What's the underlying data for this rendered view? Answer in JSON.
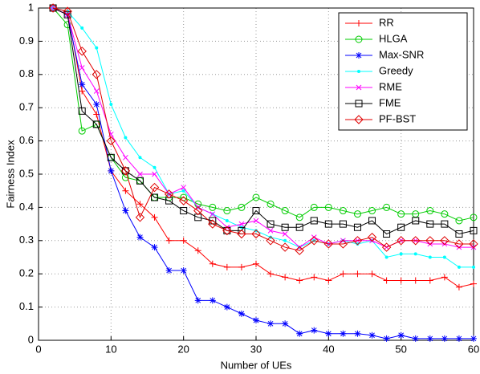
{
  "chart_data": {
    "type": "line",
    "xlabel": "Number of UEs",
    "ylabel": "Fairness Index",
    "x": [
      2,
      4,
      6,
      8,
      10,
      12,
      14,
      16,
      18,
      20,
      22,
      24,
      26,
      28,
      30,
      32,
      34,
      36,
      38,
      40,
      42,
      44,
      46,
      48,
      50,
      52,
      54,
      56,
      58,
      60
    ],
    "xlim": [
      0,
      60
    ],
    "xticks": [
      0,
      10,
      20,
      30,
      40,
      50,
      60
    ],
    "ylim": [
      0,
      1
    ],
    "yticks": [
      0,
      0.1,
      0.2,
      0.3,
      0.4,
      0.5,
      0.6,
      0.7,
      0.8,
      0.9,
      1
    ],
    "grid": true,
    "legend": "top-right",
    "series": [
      {
        "name": "RR",
        "color": "#ff0000",
        "marker": "+",
        "values": [
          1,
          0.99,
          0.75,
          0.68,
          0.51,
          0.45,
          0.41,
          0.37,
          0.3,
          0.3,
          0.27,
          0.23,
          0.22,
          0.22,
          0.23,
          0.2,
          0.19,
          0.18,
          0.19,
          0.18,
          0.2,
          0.2,
          0.2,
          0.18,
          0.18,
          0.18,
          0.18,
          0.19,
          0.16,
          0.17
        ]
      },
      {
        "name": "HLGA",
        "color": "#00cc00",
        "marker": "o",
        "values": [
          1,
          0.95,
          0.63,
          0.65,
          0.55,
          0.49,
          0.48,
          0.43,
          0.43,
          0.43,
          0.41,
          0.4,
          0.39,
          0.4,
          0.43,
          0.41,
          0.39,
          0.37,
          0.4,
          0.4,
          0.39,
          0.38,
          0.39,
          0.4,
          0.38,
          0.38,
          0.39,
          0.38,
          0.36,
          0.37
        ]
      },
      {
        "name": "Max-SNR",
        "color": "#0000ff",
        "marker": "*",
        "values": [
          1,
          0.98,
          0.77,
          0.71,
          0.51,
          0.39,
          0.31,
          0.28,
          0.21,
          0.21,
          0.12,
          0.12,
          0.1,
          0.08,
          0.06,
          0.05,
          0.05,
          0.02,
          0.03,
          0.02,
          0.02,
          0.02,
          0.015,
          0.005,
          0.015,
          0.005,
          0.005,
          0.005,
          0.005,
          0.005
        ]
      },
      {
        "name": "Greedy",
        "color": "#00ffff",
        "marker": ".",
        "values": [
          1,
          0.99,
          0.94,
          0.88,
          0.71,
          0.61,
          0.55,
          0.52,
          0.44,
          0.45,
          0.4,
          0.38,
          0.36,
          0.34,
          0.33,
          0.31,
          0.3,
          0.28,
          0.3,
          0.29,
          0.3,
          0.29,
          0.3,
          0.25,
          0.26,
          0.26,
          0.25,
          0.25,
          0.22,
          0.22
        ]
      },
      {
        "name": "RME",
        "color": "#ff00ff",
        "marker": "x",
        "values": [
          1,
          0.98,
          0.82,
          0.75,
          0.62,
          0.55,
          0.5,
          0.5,
          0.44,
          0.46,
          0.4,
          0.38,
          0.34,
          0.35,
          0.36,
          0.33,
          0.32,
          0.28,
          0.31,
          0.29,
          0.3,
          0.3,
          0.3,
          0.28,
          0.3,
          0.3,
          0.29,
          0.29,
          0.28,
          0.28
        ]
      },
      {
        "name": "FME",
        "color": "#000000",
        "marker": "s",
        "values": [
          1,
          0.98,
          0.69,
          0.65,
          0.55,
          0.51,
          0.48,
          0.43,
          0.42,
          0.39,
          0.37,
          0.36,
          0.33,
          0.33,
          0.39,
          0.35,
          0.34,
          0.34,
          0.36,
          0.35,
          0.35,
          0.34,
          0.36,
          0.32,
          0.34,
          0.36,
          0.35,
          0.35,
          0.32,
          0.33
        ]
      },
      {
        "name": "PF-BST",
        "color": "#e00000",
        "marker": "d",
        "values": [
          1,
          0.99,
          0.87,
          0.8,
          0.6,
          0.51,
          0.37,
          0.46,
          0.44,
          0.42,
          0.39,
          0.35,
          0.33,
          0.32,
          0.32,
          0.3,
          0.28,
          0.27,
          0.3,
          0.29,
          0.29,
          0.3,
          0.31,
          0.28,
          0.3,
          0.3,
          0.3,
          0.3,
          0.29,
          0.29
        ]
      }
    ]
  }
}
